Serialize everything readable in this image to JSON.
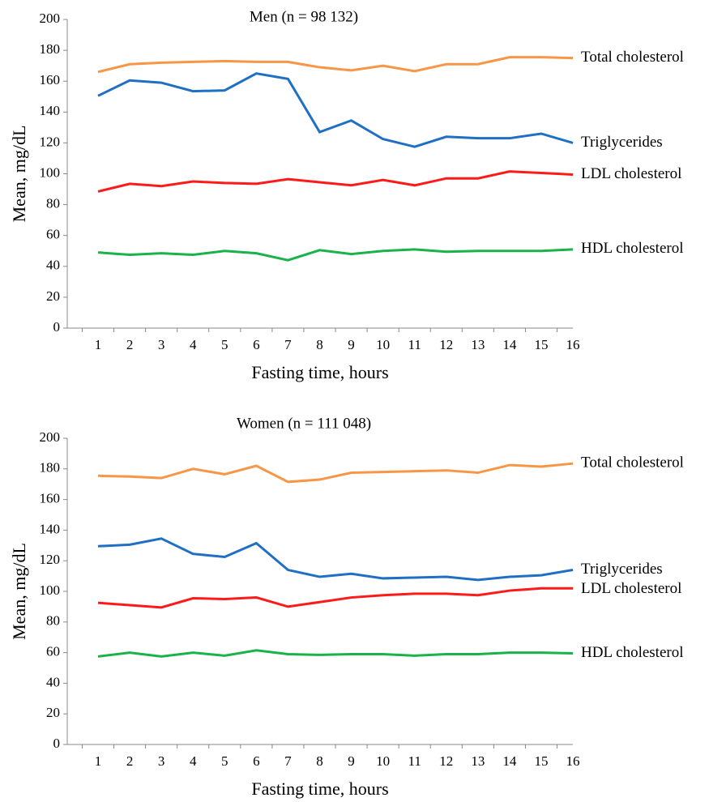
{
  "chart_data": [
    {
      "type": "line",
      "title": "Men (n = 98 132)",
      "x_label": "Fasting time, hours",
      "y_label": "Mean, mg/dL",
      "categories": [
        "1",
        "2",
        "3",
        "4",
        "5",
        "6",
        "7",
        "8",
        "9",
        "10",
        "11",
        "12",
        "13",
        "14",
        "15",
        "16"
      ],
      "ylim": [
        0,
        200
      ],
      "yticks": [
        0,
        20,
        40,
        60,
        80,
        100,
        120,
        140,
        160,
        180,
        200
      ],
      "series": [
        {
          "name": "Total cholesterol",
          "color": "#f79646",
          "values": [
            166,
            171,
            172,
            172.5,
            173,
            172.5,
            172.5,
            169,
            167,
            170,
            166.5,
            171,
            171,
            175.5,
            175.5,
            175
          ]
        },
        {
          "name": "Triglycerides",
          "color": "#1f6fc5",
          "values": [
            150.5,
            160.5,
            159,
            153.5,
            154,
            165,
            161.5,
            127,
            134.5,
            122.5,
            117.5,
            124,
            123,
            123,
            126,
            120
          ]
        },
        {
          "name": "LDL cholesterol",
          "color": "#ff1a1a",
          "values": [
            88.5,
            93.5,
            92,
            95,
            94,
            93.5,
            96.5,
            94.5,
            92.5,
            96,
            92.5,
            97,
            97,
            101.5,
            100.5,
            99.5
          ]
        },
        {
          "name": "HDL cholesterol",
          "color": "#1ab34a",
          "values": [
            49,
            47.5,
            48.5,
            47.5,
            50,
            48.5,
            44,
            50.5,
            48,
            50,
            51,
            49.5,
            50,
            50,
            50,
            51
          ]
        }
      ]
    },
    {
      "type": "line",
      "title": "Women (n = 111 048)",
      "x_label": "Fasting time, hours",
      "y_label": "Mean, mg/dL",
      "categories": [
        "1",
        "2",
        "3",
        "4",
        "5",
        "6",
        "7",
        "8",
        "9",
        "10",
        "11",
        "12",
        "13",
        "14",
        "15",
        "16"
      ],
      "ylim": [
        0,
        200
      ],
      "yticks": [
        0,
        20,
        40,
        60,
        80,
        100,
        120,
        140,
        160,
        180,
        200
      ],
      "series": [
        {
          "name": "Total cholesterol",
          "color": "#f79646",
          "values": [
            175.5,
            175,
            174,
            180,
            176.5,
            182,
            171.5,
            173,
            177.5,
            178,
            178.5,
            179,
            177.5,
            182.5,
            181.5,
            183.5
          ]
        },
        {
          "name": "Triglycerides",
          "color": "#1f6fc5",
          "values": [
            129.5,
            130.5,
            134.5,
            124.5,
            122.5,
            131.5,
            114,
            109.5,
            111.5,
            108.5,
            109,
            109.5,
            107.5,
            109.5,
            110.5,
            114
          ]
        },
        {
          "name": "LDL cholesterol",
          "color": "#ff1a1a",
          "values": [
            92.5,
            91,
            89.5,
            95.5,
            95,
            96,
            90,
            93,
            96,
            97.5,
            98.5,
            98.5,
            97.5,
            100.5,
            102,
            102
          ]
        },
        {
          "name": "HDL cholesterol",
          "color": "#1ab34a",
          "values": [
            57.5,
            60,
            57.5,
            60,
            58,
            61.5,
            59,
            58.5,
            59,
            59,
            58,
            59,
            59,
            60,
            60,
            59.5
          ]
        }
      ]
    }
  ]
}
